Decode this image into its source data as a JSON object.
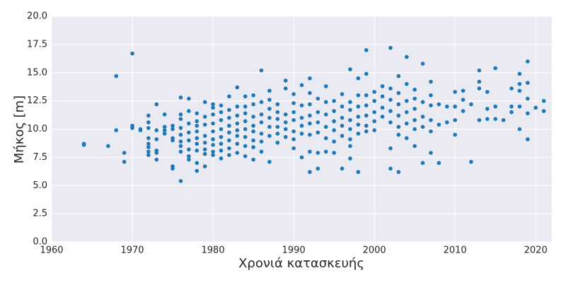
{
  "chart_data": {
    "type": "scatter",
    "xlabel": "Χρονιά κατασκευής",
    "ylabel": "Μήκος   [m]",
    "color": "#1f77b4",
    "grid": true,
    "xlim": [
      1960,
      2022
    ],
    "ylim": [
      0,
      20
    ],
    "xticks": [
      1960,
      1970,
      1980,
      1990,
      2000,
      2010,
      2020
    ],
    "yticks": [
      {
        "value": 0,
        "label": "0.0"
      },
      {
        "value": 2.5,
        "label": "2.5"
      },
      {
        "value": 5,
        "label": "5.0"
      },
      {
        "value": 7.5,
        "label": "7.5"
      },
      {
        "value": 10,
        "label": "10.0"
      },
      {
        "value": 12.5,
        "label": "12.5"
      },
      {
        "value": 15,
        "label": "15.0"
      },
      {
        "value": 17.5,
        "label": "17.5"
      },
      {
        "value": 20,
        "label": "20.0"
      }
    ],
    "x": [
      1964,
      1964,
      1967,
      1968,
      1968,
      1969,
      1969,
      1970,
      1970,
      1970,
      1971,
      1971,
      1972,
      1972,
      1972,
      1972,
      1972,
      1972,
      1972,
      1972,
      1973,
      1973,
      1973,
      1973,
      1973,
      1973,
      1974,
      1974,
      1974,
      1974,
      1975,
      1975,
      1975,
      1975,
      1975,
      1975,
      1976,
      1976,
      1976,
      1976,
      1976,
      1976,
      1976,
      1976,
      1976,
      1977,
      1977,
      1977,
      1977,
      1977,
      1977,
      1977,
      1977,
      1978,
      1978,
      1978,
      1978,
      1978,
      1978,
      1978,
      1978,
      1978,
      1979,
      1979,
      1979,
      1979,
      1979,
      1979,
      1979,
      1979,
      1980,
      1980,
      1980,
      1980,
      1980,
      1980,
      1980,
      1980,
      1980,
      1981,
      1981,
      1981,
      1981,
      1981,
      1981,
      1981,
      1981,
      1982,
      1982,
      1982,
      1982,
      1982,
      1982,
      1982,
      1982,
      1983,
      1983,
      1983,
      1983,
      1983,
      1983,
      1983,
      1983,
      1984,
      1984,
      1984,
      1984,
      1984,
      1984,
      1984,
      1984,
      1985,
      1985,
      1985,
      1985,
      1985,
      1985,
      1985,
      1985,
      1986,
      1986,
      1986,
      1986,
      1986,
      1986,
      1986,
      1987,
      1987,
      1987,
      1987,
      1987,
      1987,
      1987,
      1988,
      1988,
      1988,
      1988,
      1988,
      1988,
      1989,
      1989,
      1989,
      1989,
      1989,
      1989,
      1990,
      1990,
      1990,
      1990,
      1990,
      1990,
      1990,
      1991,
      1991,
      1991,
      1991,
      1991,
      1991,
      1992,
      1992,
      1992,
      1992,
      1992,
      1992,
      1992,
      1992,
      1993,
      1993,
      1993,
      1993,
      1993,
      1993,
      1994,
      1994,
      1994,
      1994,
      1994,
      1994,
      1995,
      1995,
      1995,
      1995,
      1995,
      1995,
      1996,
      1996,
      1996,
      1996,
      1996,
      1996,
      1997,
      1997,
      1997,
      1997,
      1997,
      1997,
      1997,
      1997,
      1998,
      1998,
      1998,
      1998,
      1998,
      1998,
      1998,
      1999,
      1999,
      1999,
      1999,
      1999,
      1999,
      1999,
      2000,
      2000,
      2000,
      2000,
      2000,
      2001,
      2001,
      2001,
      2001,
      2002,
      2002,
      2002,
      2002,
      2002,
      2002,
      2002,
      2003,
      2003,
      2003,
      2003,
      2003,
      2003,
      2003,
      2004,
      2004,
      2004,
      2004,
      2004,
      2004,
      2005,
      2005,
      2005,
      2005,
      2005,
      2005,
      2006,
      2006,
      2006,
      2006,
      2006,
      2007,
      2007,
      2007,
      2007,
      2007,
      2007,
      2008,
      2008,
      2008,
      2009,
      2009,
      2010,
      2010,
      2010,
      2010,
      2011,
      2011,
      2011,
      2012,
      2012,
      2013,
      2013,
      2013,
      2013,
      2014,
      2014,
      2014,
      2015,
      2015,
      2015,
      2016,
      2017,
      2017,
      2017,
      2018,
      2018,
      2018,
      2018,
      2018,
      2019,
      2019,
      2019,
      2019,
      2019,
      2020,
      2021,
      2021
    ],
    "values": [
      8.7,
      8.6,
      8.5,
      14.7,
      9.9,
      7.9,
      7.1,
      16.7,
      10.3,
      10.1,
      9.9,
      10.0,
      11.2,
      10.6,
      10.1,
      9.2,
      8.7,
      8.4,
      7.7,
      8.0,
      12.2,
      9.9,
      9.1,
      8.1,
      7.9,
      7.3,
      11.3,
      10.2,
      9.9,
      9.6,
      10.3,
      10.0,
      9.2,
      9.0,
      6.7,
      6.5,
      12.8,
      11.3,
      10.9,
      10.1,
      9.5,
      8.9,
      8.5,
      8.0,
      5.4,
      12.7,
      11.6,
      10.5,
      9.7,
      9.0,
      8.2,
      7.6,
      7.3,
      11.4,
      10.7,
      10.3,
      9.8,
      9.2,
      8.7,
      8.1,
      7.0,
      6.3,
      12.4,
      11.1,
      10.4,
      9.4,
      8.8,
      8.2,
      7.8,
      6.7,
      12.2,
      11.9,
      11.3,
      10.5,
      9.8,
      9.1,
      8.6,
      8.0,
      7.7,
      12.1,
      11.5,
      10.8,
      10.0,
      9.3,
      8.7,
      8.1,
      7.4,
      12.9,
      11.7,
      11.0,
      10.3,
      9.7,
      9.0,
      8.3,
      7.7,
      13.7,
      12.0,
      11.2,
      10.5,
      9.9,
      9.4,
      8.7,
      7.9,
      12.9,
      12.0,
      11.4,
      10.7,
      10.0,
      9.3,
      8.5,
      7.6,
      13.0,
      12.2,
      11.1,
      10.3,
      9.8,
      9.0,
      8.4,
      7.3,
      15.2,
      12.4,
      11.3,
      10.6,
      9.6,
      8.9,
      8.0,
      13.4,
      12.6,
      11.8,
      11.0,
      10.2,
      9.4,
      7.1,
      12.2,
      11.5,
      10.9,
      10.2,
      9.6,
      8.8,
      14.3,
      13.6,
      11.3,
      10.6,
      10.0,
      9.3,
      13.1,
      12.3,
      11.5,
      10.8,
      9.8,
      9.1,
      8.3,
      13.9,
      12.1,
      11.0,
      10.3,
      9.6,
      7.5,
      14.5,
      13.2,
      12.2,
      11.2,
      10.5,
      9.5,
      8.0,
      6.2,
      12.7,
      11.5,
      10.6,
      9.7,
      7.9,
      6.5,
      13.8,
      12.4,
      11.3,
      10.2,
      9.2,
      8.0,
      12.5,
      11.6,
      10.7,
      9.9,
      8.9,
      7.9,
      13.1,
      12.0,
      11.0,
      10.3,
      9.4,
      6.5,
      15.3,
      12.4,
      11.7,
      10.8,
      10.0,
      9.1,
      8.5,
      7.4,
      14.5,
      13.0,
      12.0,
      11.1,
      10.4,
      9.6,
      6.2,
      17.0,
      14.9,
      13.0,
      12.1,
      11.2,
      10.3,
      9.8,
      13.3,
      12.5,
      11.5,
      10.7,
      9.9,
      13.8,
      12.9,
      11.9,
      11.1,
      17.2,
      13.6,
      12.6,
      11.6,
      10.6,
      8.3,
      6.5,
      14.7,
      13.2,
      12.2,
      11.2,
      10.2,
      9.5,
      6.2,
      16.4,
      14.0,
      12.5,
      11.5,
      10.5,
      9.2,
      13.5,
      12.7,
      11.8,
      10.8,
      10.0,
      8.5,
      15.8,
      12.4,
      11.1,
      10.2,
      7.0,
      14.2,
      13.0,
      12.1,
      10.8,
      9.8,
      7.9,
      12.2,
      10.4,
      7.0,
      12.0,
      10.6,
      13.3,
      12.0,
      10.8,
      9.5,
      13.4,
      12.6,
      11.6,
      12.2,
      7.1,
      15.2,
      14.2,
      13.6,
      10.8,
      13.3,
      11.8,
      10.9,
      15.4,
      12.0,
      10.9,
      10.8,
      13.6,
      12.0,
      11.5,
      14.9,
      14.0,
      13.4,
      12.0,
      10.0,
      16.0,
      14.1,
      12.7,
      11.4,
      9.1,
      11.9,
      12.5,
      11.6
    ]
  }
}
